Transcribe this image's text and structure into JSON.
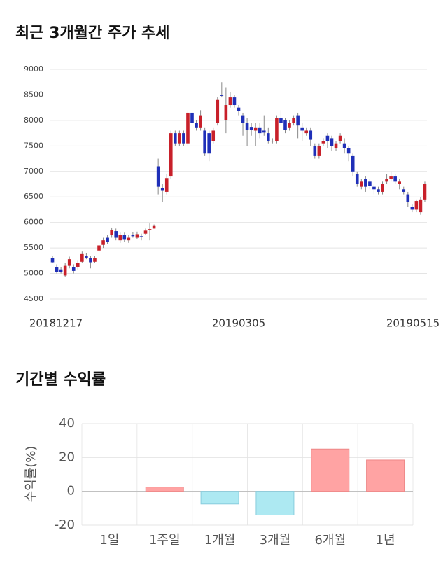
{
  "chart_data": [
    {
      "type": "candlestick",
      "title": "최근 3개월간 주가 추세",
      "categories": [
        "20181217",
        null,
        null,
        null,
        null,
        null,
        null,
        null,
        null,
        null,
        null,
        null,
        null,
        null,
        null,
        null,
        null,
        null,
        null,
        null,
        null,
        null,
        null,
        null,
        null,
        null,
        null,
        null,
        null,
        null,
        null,
        null,
        null,
        null,
        null,
        null,
        null,
        null,
        null,
        null,
        null,
        null,
        null,
        null,
        "20190305",
        null,
        null,
        null,
        null,
        null,
        null,
        null,
        null,
        null,
        null,
        null,
        null,
        null,
        null,
        null,
        null,
        null,
        null,
        null,
        null,
        null,
        null,
        null,
        null,
        null,
        null,
        null,
        null,
        null,
        null,
        null,
        null,
        null,
        null,
        null,
        null,
        null,
        null,
        null,
        null,
        null,
        null,
        null,
        "20190515"
      ],
      "open": [
        5300,
        5130,
        5080,
        4960,
        5150,
        5130,
        5120,
        5230,
        5350,
        5300,
        5230,
        5450,
        5560,
        5700,
        5750,
        5830,
        5650,
        5750,
        5650,
        5760,
        5700,
        5730,
        5780,
        5850,
        5880,
        7100,
        6680,
        6600,
        6900,
        7750,
        7550,
        7750,
        7550,
        8150,
        7950,
        7850,
        7800,
        7750,
        7600,
        7950,
        8500,
        8000,
        8300,
        8450,
        8250,
        8100,
        7950,
        7860,
        7800,
        7850,
        7800,
        7750,
        7600,
        7600,
        8050,
        8000,
        7850,
        7950,
        8100,
        7850,
        7750,
        7800,
        7500,
        7300,
        7550,
        7700,
        7650,
        7450,
        7600,
        7550,
        7450,
        7300,
        6950,
        6700,
        6850,
        6800,
        6700,
        6650,
        6600,
        6800,
        6850,
        6900,
        6750,
        6650,
        6550,
        6300,
        6250,
        6200,
        6450
      ],
      "high": [
        5350,
        5180,
        5130,
        5200,
        5330,
        5180,
        5250,
        5430,
        5400,
        5350,
        5350,
        5600,
        5700,
        5750,
        5900,
        5880,
        5800,
        5800,
        5750,
        5810,
        5820,
        5780,
        5880,
        5980,
        5960,
        7250,
        6750,
        6950,
        7800,
        7800,
        7800,
        7800,
        8200,
        8200,
        8000,
        8200,
        7850,
        7800,
        7850,
        8450,
        8750,
        8650,
        8550,
        8500,
        8300,
        8150,
        8050,
        7950,
        7950,
        7950,
        8100,
        7850,
        7650,
        8100,
        8200,
        8050,
        8000,
        8100,
        8150,
        7950,
        7850,
        7850,
        7550,
        7550,
        7650,
        7750,
        7700,
        7600,
        7750,
        7650,
        7500,
        7350,
        7000,
        6850,
        6900,
        6850,
        6750,
        6700,
        6800,
        6950,
        7000,
        6950,
        6850,
        6700,
        6600,
        6350,
        6450,
        6500,
        6800
      ],
      "low": [
        5200,
        5000,
        5000,
        4930,
        5100,
        5000,
        5080,
        5200,
        5280,
        5100,
        5200,
        5400,
        5500,
        5580,
        5700,
        5650,
        5600,
        5620,
        5600,
        5700,
        5680,
        5650,
        5750,
        5650,
        5880,
        6550,
        6400,
        6550,
        6850,
        7500,
        7500,
        7500,
        7500,
        7900,
        7800,
        7800,
        7300,
        7200,
        7550,
        7900,
        8450,
        7750,
        8250,
        8250,
        8100,
        7700,
        7500,
        7700,
        7500,
        7650,
        7700,
        7550,
        7550,
        7550,
        7900,
        7750,
        7800,
        7900,
        7650,
        7600,
        7700,
        7500,
        7250,
        7250,
        7500,
        7450,
        7400,
        7400,
        7550,
        7350,
        7200,
        6900,
        6700,
        6650,
        6600,
        6650,
        6550,
        6550,
        6550,
        6750,
        6800,
        6750,
        6650,
        6550,
        6300,
        6200,
        6200,
        6150,
        6400
      ],
      "close": [
        5220,
        5030,
        5030,
        5150,
        5280,
        5050,
        5200,
        5380,
        5310,
        5220,
        5300,
        5550,
        5650,
        5620,
        5850,
        5700,
        5750,
        5660,
        5700,
        5730,
        5770,
        5710,
        5840,
        5870,
        5930,
        6700,
        6620,
        6870,
        7750,
        7550,
        7750,
        7550,
        8150,
        7950,
        7850,
        8100,
        7350,
        7350,
        7800,
        8400,
        8480,
        8300,
        8450,
        8300,
        8180,
        7950,
        7820,
        7820,
        7850,
        7750,
        7760,
        7600,
        7600,
        8050,
        7950,
        7820,
        7950,
        8050,
        7900,
        7800,
        7800,
        7620,
        7300,
        7500,
        7600,
        7600,
        7500,
        7550,
        7700,
        7450,
        7350,
        7000,
        6750,
        6800,
        6700,
        6720,
        6650,
        6600,
        6750,
        6850,
        6900,
        6800,
        6800,
        6600,
        6400,
        6250,
        6420,
        6450,
        6750
      ],
      "up_color": "#c8202a",
      "down_color": "#1f2fb8",
      "ylim": [
        4500,
        9000
      ],
      "yticks": [
        4500,
        5000,
        5500,
        6000,
        6500,
        7000,
        7500,
        8000,
        8500,
        9000
      ],
      "grid": true
    },
    {
      "type": "bar",
      "title": "기간별 수익률",
      "y_label": "수익률(%)",
      "categories": [
        "1일",
        "1주일",
        "1개월",
        "3개월",
        "6개월",
        "1년"
      ],
      "values": [
        0,
        2.5,
        -7.5,
        -14,
        25,
        18.5
      ],
      "positive_color": "#ffa3a3",
      "negative_color": "#ade9f2",
      "ylim": [
        -20,
        40
      ],
      "yticks": [
        -20,
        0,
        20,
        40
      ],
      "grid": true
    }
  ]
}
